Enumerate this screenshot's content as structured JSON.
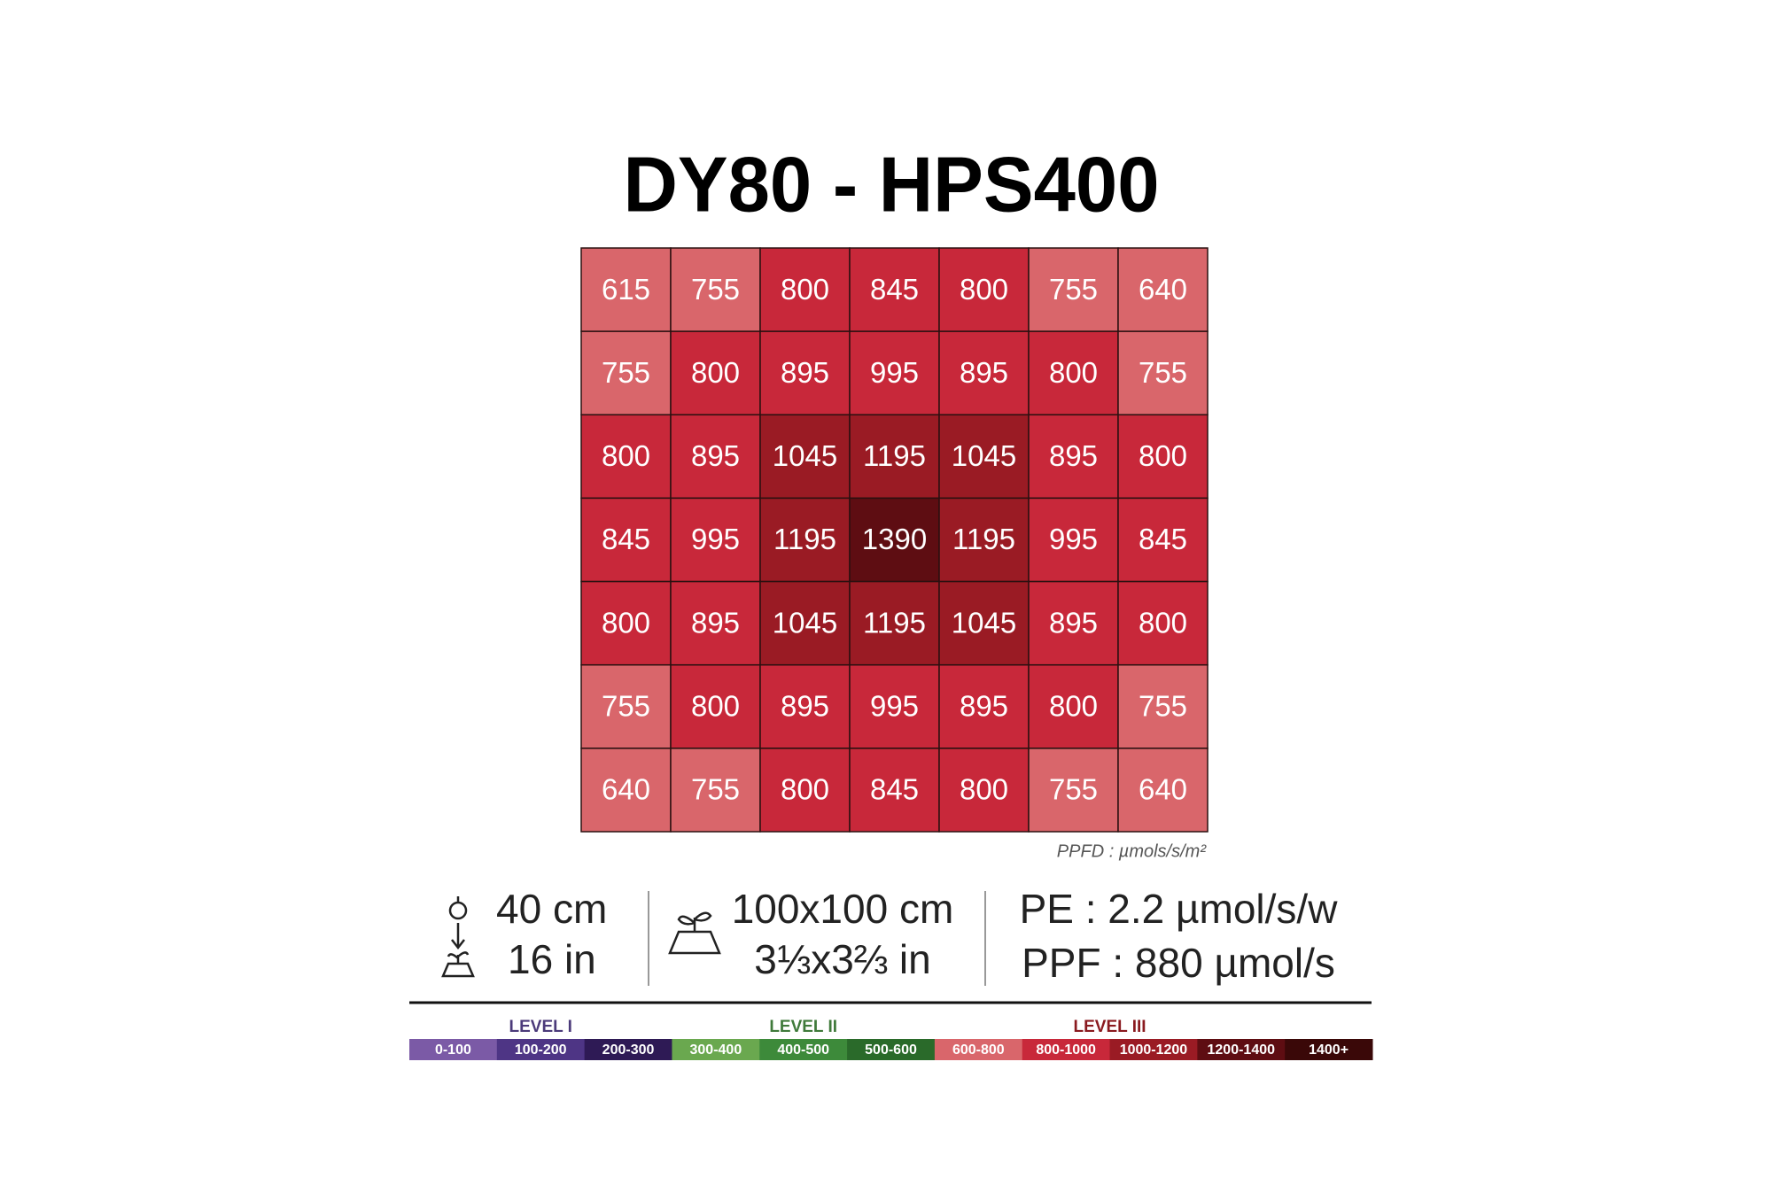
{
  "title": "DY80 - HPS400",
  "grid": [
    [
      615,
      755,
      800,
      845,
      800,
      755,
      640
    ],
    [
      755,
      800,
      895,
      995,
      895,
      800,
      755
    ],
    [
      800,
      895,
      1045,
      1195,
      1045,
      895,
      800
    ],
    [
      845,
      995,
      1195,
      1390,
      1195,
      995,
      845
    ],
    [
      800,
      895,
      1045,
      1195,
      1045,
      895,
      800
    ],
    [
      755,
      800,
      895,
      995,
      895,
      800,
      755
    ],
    [
      640,
      755,
      800,
      845,
      800,
      755,
      640
    ]
  ],
  "unit": "PPFD : µmols/s/m²",
  "specs": {
    "height": [
      "40 cm",
      "16 in"
    ],
    "area": [
      "100x100 cm",
      "3⅓x3⅔ in"
    ],
    "efficiency": [
      "PE : 2.2 µmol/s/w",
      "PPF : 880 µmol/s"
    ]
  },
  "legend": [
    {
      "label": "LEVEL I",
      "color": "#4b3a7a",
      "items": [
        {
          "label": "0-100",
          "color": "#7b5aa6"
        },
        {
          "label": "100-200",
          "color": "#4e3585"
        },
        {
          "label": "200-300",
          "color": "#2e1a55"
        }
      ]
    },
    {
      "label": "LEVEL II",
      "color": "#3f7a3a",
      "items": [
        {
          "label": "300-400",
          "color": "#6aa84f"
        },
        {
          "label": "400-500",
          "color": "#3d8a3a"
        },
        {
          "label": "500-600",
          "color": "#2a6a2a"
        }
      ]
    },
    {
      "label": "LEVEL III",
      "color": "#8a1a1f",
      "items": [
        {
          "label": "600-800",
          "color": "#d9666b"
        },
        {
          "label": "800-1000",
          "color": "#c8283a"
        },
        {
          "label": "1000-1200",
          "color": "#9a1b24"
        },
        {
          "label": "1200-1400",
          "color": "#5e0d12"
        },
        {
          "label": "1400+",
          "color": "#3a0808"
        }
      ]
    }
  ]
}
